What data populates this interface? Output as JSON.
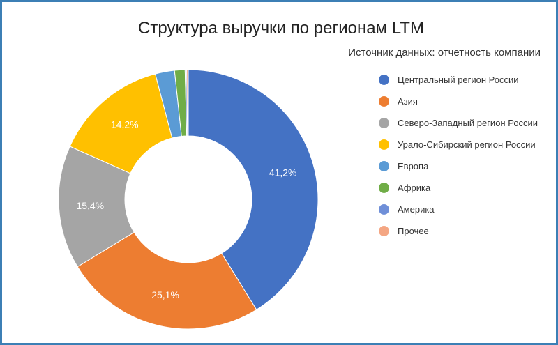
{
  "chart_data": {
    "type": "pie",
    "title": "Структура выручки по регионам LTM",
    "subtitle": "Источник данных: отчетность компании",
    "donut": true,
    "legend_position": "right",
    "labels": [
      "Центральный регион России",
      "Азия",
      "Северо-Западный регион России",
      "Урало-Сибирский регион России",
      "Европа",
      "Африка",
      "Америка",
      "Прочее"
    ],
    "values": [
      41.2,
      25.1,
      15.4,
      14.2,
      2.4,
      1.3,
      0.2,
      0.2
    ],
    "data_labels": [
      "41,2%",
      "25,1%",
      "15,4%",
      "14,2%",
      "",
      "",
      "",
      ""
    ],
    "colors": [
      "#4472c4",
      "#ed7d31",
      "#a5a5a5",
      "#ffc000",
      "#5b9bd5",
      "#70ad47",
      "#6f8fd8",
      "#f4a683"
    ]
  }
}
